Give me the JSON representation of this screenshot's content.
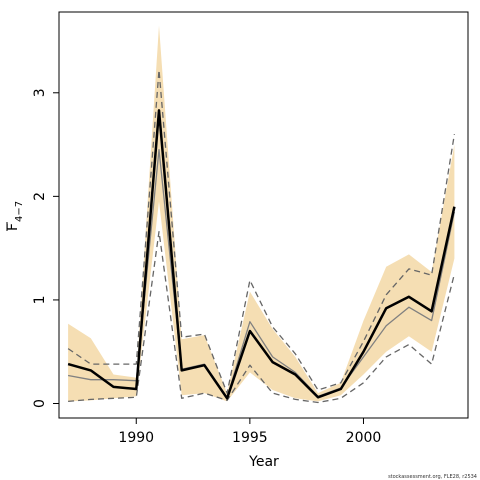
{
  "chart_data": {
    "type": "line",
    "xlabel": "Year",
    "ylabel": "F",
    "ylabel_sub": "4−7",
    "xlim": [
      1986.6,
      2004.6
    ],
    "ylim": [
      -0.14,
      3.78
    ],
    "xticks": [
      1990,
      1995,
      2000
    ],
    "yticks": [
      0,
      1,
      2,
      3
    ],
    "grid": false,
    "colors": {
      "band": "#f5deb3",
      "estimate": "#000000",
      "comparison": "#808080",
      "dashed": "#666666"
    },
    "x": [
      1987,
      1988,
      1989,
      1990,
      1991,
      1992,
      1993,
      1994,
      1995,
      1996,
      1997,
      1998,
      1999,
      2000,
      2001,
      2002,
      2003,
      2004
    ],
    "series": [
      {
        "role": "band_upper",
        "values": [
          0.77,
          0.63,
          0.28,
          0.25,
          3.65,
          0.62,
          0.66,
          0.1,
          1.08,
          0.72,
          0.45,
          0.1,
          0.2,
          0.8,
          1.32,
          1.44,
          1.27,
          2.5
        ]
      },
      {
        "role": "band_lower",
        "values": [
          0.02,
          0.03,
          0.05,
          0.07,
          1.95,
          0.08,
          0.1,
          0.02,
          0.3,
          0.13,
          0.05,
          0.02,
          0.08,
          0.28,
          0.5,
          0.65,
          0.5,
          1.4
        ]
      },
      {
        "role": "dashed_upper",
        "values": [
          0.53,
          0.38,
          0.38,
          0.38,
          3.22,
          0.64,
          0.67,
          0.1,
          1.19,
          0.74,
          0.48,
          0.13,
          0.2,
          0.6,
          1.05,
          1.3,
          1.24,
          2.6
        ]
      },
      {
        "role": "dashed_lower",
        "values": [
          0.02,
          0.04,
          0.05,
          0.06,
          1.66,
          0.05,
          0.1,
          0.03,
          0.37,
          0.1,
          0.04,
          0.01,
          0.05,
          0.2,
          0.45,
          0.57,
          0.38,
          1.25
        ]
      },
      {
        "role": "comparison",
        "values": [
          0.27,
          0.23,
          0.23,
          0.22,
          2.45,
          0.33,
          0.38,
          0.06,
          0.79,
          0.45,
          0.3,
          0.07,
          0.15,
          0.45,
          0.75,
          0.93,
          0.8,
          1.85
        ]
      },
      {
        "role": "estimate",
        "values": [
          0.38,
          0.32,
          0.16,
          0.14,
          2.83,
          0.32,
          0.37,
          0.05,
          0.7,
          0.4,
          0.28,
          0.06,
          0.14,
          0.5,
          0.92,
          1.03,
          0.89,
          1.9
        ]
      }
    ]
  },
  "footer": "stockassessment.org, FLE28, r2534"
}
